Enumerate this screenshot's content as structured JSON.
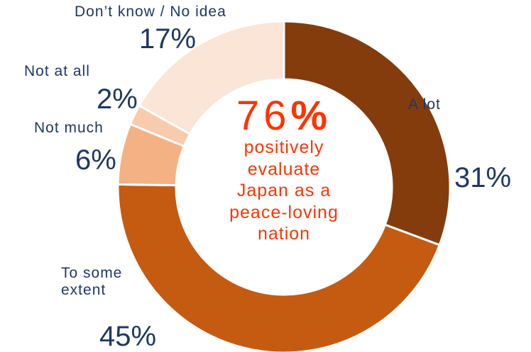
{
  "chart_data": {
    "type": "donut",
    "categories": [
      "A lot",
      "To some extent",
      "Not much",
      "Not at all",
      "Don’t know / No idea"
    ],
    "values": [
      31,
      45,
      6,
      2,
      17
    ],
    "value_labels": [
      "31%",
      "45%",
      "6%",
      "2%",
      "17%"
    ],
    "colors": [
      "#843c0c",
      "#c55a11",
      "#f4b183",
      "#f8cbad",
      "#fbe5d6"
    ],
    "center_value": "76",
    "center_unit": "%",
    "center_lines": [
      "positively",
      "evaluate",
      "Japan as a",
      "peace-loving",
      "nation"
    ]
  }
}
